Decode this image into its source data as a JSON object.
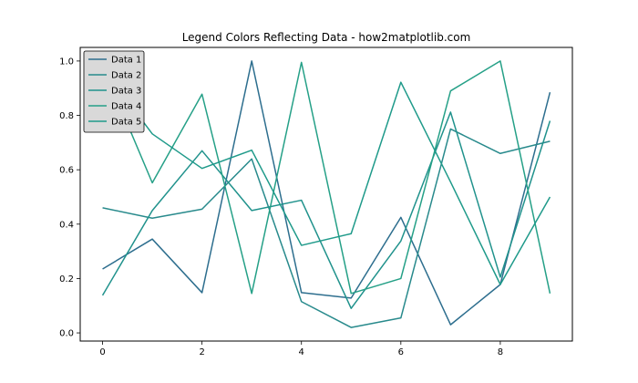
{
  "chart_data": {
    "type": "line",
    "title": "Legend Colors Reflecting Data - how2matplotlib.com",
    "xlabel": "",
    "ylabel": "",
    "xlim": [
      -0.45,
      9.45
    ],
    "ylim": [
      -0.03,
      1.05
    ],
    "xticks": [
      0,
      2,
      4,
      6,
      8
    ],
    "yticks": [
      0.0,
      0.2,
      0.4,
      0.6,
      0.8,
      1.0
    ],
    "xtick_labels": [
      "0",
      "2",
      "4",
      "6",
      "8"
    ],
    "ytick_labels": [
      "0.0",
      "0.2",
      "0.4",
      "0.6",
      "0.8",
      "1.0"
    ],
    "grid": false,
    "legend_position": "upper-left",
    "legend_style": {
      "facecolor": "#d9d9d9",
      "edgecolor": "#000000"
    },
    "x": [
      0,
      1,
      2,
      3,
      4,
      5,
      6,
      7,
      8,
      9
    ],
    "series": [
      {
        "name": "Data 1",
        "color": "#2d6e8e",
        "values": [
          0.235,
          0.345,
          0.148,
          1.0,
          0.148,
          0.128,
          0.425,
          0.03,
          0.178,
          0.885
        ]
      },
      {
        "name": "Data 2",
        "color": "#288a8c",
        "values": [
          0.46,
          0.422,
          0.455,
          0.64,
          0.115,
          0.02,
          0.055,
          0.75,
          0.66,
          0.705
        ]
      },
      {
        "name": "Data 3",
        "color": "#20928c",
        "values": [
          0.138,
          0.45,
          0.67,
          0.45,
          0.488,
          0.09,
          0.338,
          0.812,
          0.205,
          0.78
        ]
      },
      {
        "name": "Data 4",
        "color": "#25a087",
        "values": [
          0.985,
          0.552,
          0.878,
          0.145,
          0.995,
          0.145,
          0.2,
          0.89,
          1.0,
          0.145
        ]
      },
      {
        "name": "Data 5",
        "color": "#1f9a8a",
        "values": [
          0.975,
          0.732,
          0.605,
          0.672,
          0.322,
          0.365,
          0.922,
          0.555,
          0.178,
          0.5
        ]
      }
    ]
  }
}
